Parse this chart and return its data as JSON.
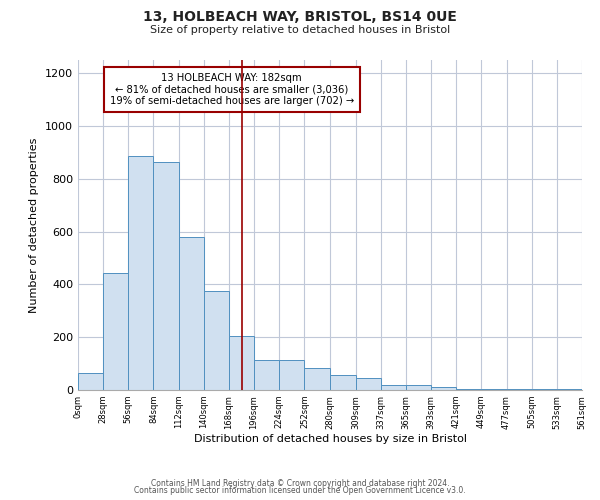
{
  "title": "13, HOLBEACH WAY, BRISTOL, BS14 0UE",
  "subtitle": "Size of property relative to detached houses in Bristol",
  "xlabel": "Distribution of detached houses by size in Bristol",
  "ylabel": "Number of detached properties",
  "footer_line1": "Contains HM Land Registry data © Crown copyright and database right 2024.",
  "footer_line2": "Contains public sector information licensed under the Open Government Licence v3.0.",
  "bin_edges": [
    0,
    28,
    56,
    84,
    112,
    140,
    168,
    196,
    224,
    252,
    280,
    309,
    337,
    365,
    393,
    421,
    449,
    477,
    505,
    533,
    561
  ],
  "bin_labels": [
    "0sqm",
    "28sqm",
    "56sqm",
    "84sqm",
    "112sqm",
    "140sqm",
    "168sqm",
    "196sqm",
    "224sqm",
    "252sqm",
    "280sqm",
    "309sqm",
    "337sqm",
    "365sqm",
    "393sqm",
    "421sqm",
    "449sqm",
    "477sqm",
    "505sqm",
    "533sqm",
    "561sqm"
  ],
  "bar_heights": [
    65,
    445,
    885,
    865,
    580,
    375,
    205,
    115,
    115,
    85,
    55,
    45,
    20,
    18,
    10,
    5,
    5,
    5,
    2,
    2
  ],
  "bar_color": "#d0e0f0",
  "bar_edge_color": "#5090c0",
  "ylim": [
    0,
    1250
  ],
  "yticks": [
    0,
    200,
    400,
    600,
    800,
    1000,
    1200
  ],
  "property_size": 182,
  "annotation_title": "13 HOLBEACH WAY: 182sqm",
  "annotation_line1": "← 81% of detached houses are smaller (3,036)",
  "annotation_line2": "19% of semi-detached houses are larger (702) →",
  "vline_color": "#990000",
  "annotation_box_edge_color": "#990000",
  "background_color": "#ffffff",
  "grid_color": "#c0c8d8"
}
